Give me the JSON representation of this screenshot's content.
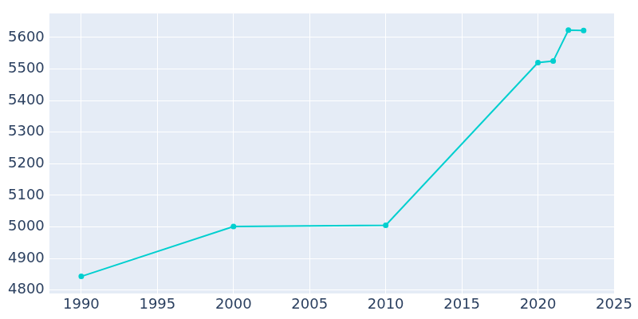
{
  "chart_data": {
    "type": "line",
    "x": [
      1990,
      2000,
      2010,
      2020,
      2021,
      2022,
      2023
    ],
    "values": [
      4843,
      5001,
      5005,
      5520,
      5525,
      5623,
      5622
    ],
    "color": "#00cfcf",
    "marker": "circle",
    "xlim": [
      1987.9,
      2025
    ],
    "xticks": [
      1990,
      1995,
      2000,
      2005,
      2010,
      2015,
      2020,
      2025
    ],
    "ylim": [
      4788,
      5676
    ],
    "yticks": [
      4800,
      4900,
      5000,
      5100,
      5200,
      5300,
      5400,
      5500,
      5600
    ],
    "grid": true
  }
}
